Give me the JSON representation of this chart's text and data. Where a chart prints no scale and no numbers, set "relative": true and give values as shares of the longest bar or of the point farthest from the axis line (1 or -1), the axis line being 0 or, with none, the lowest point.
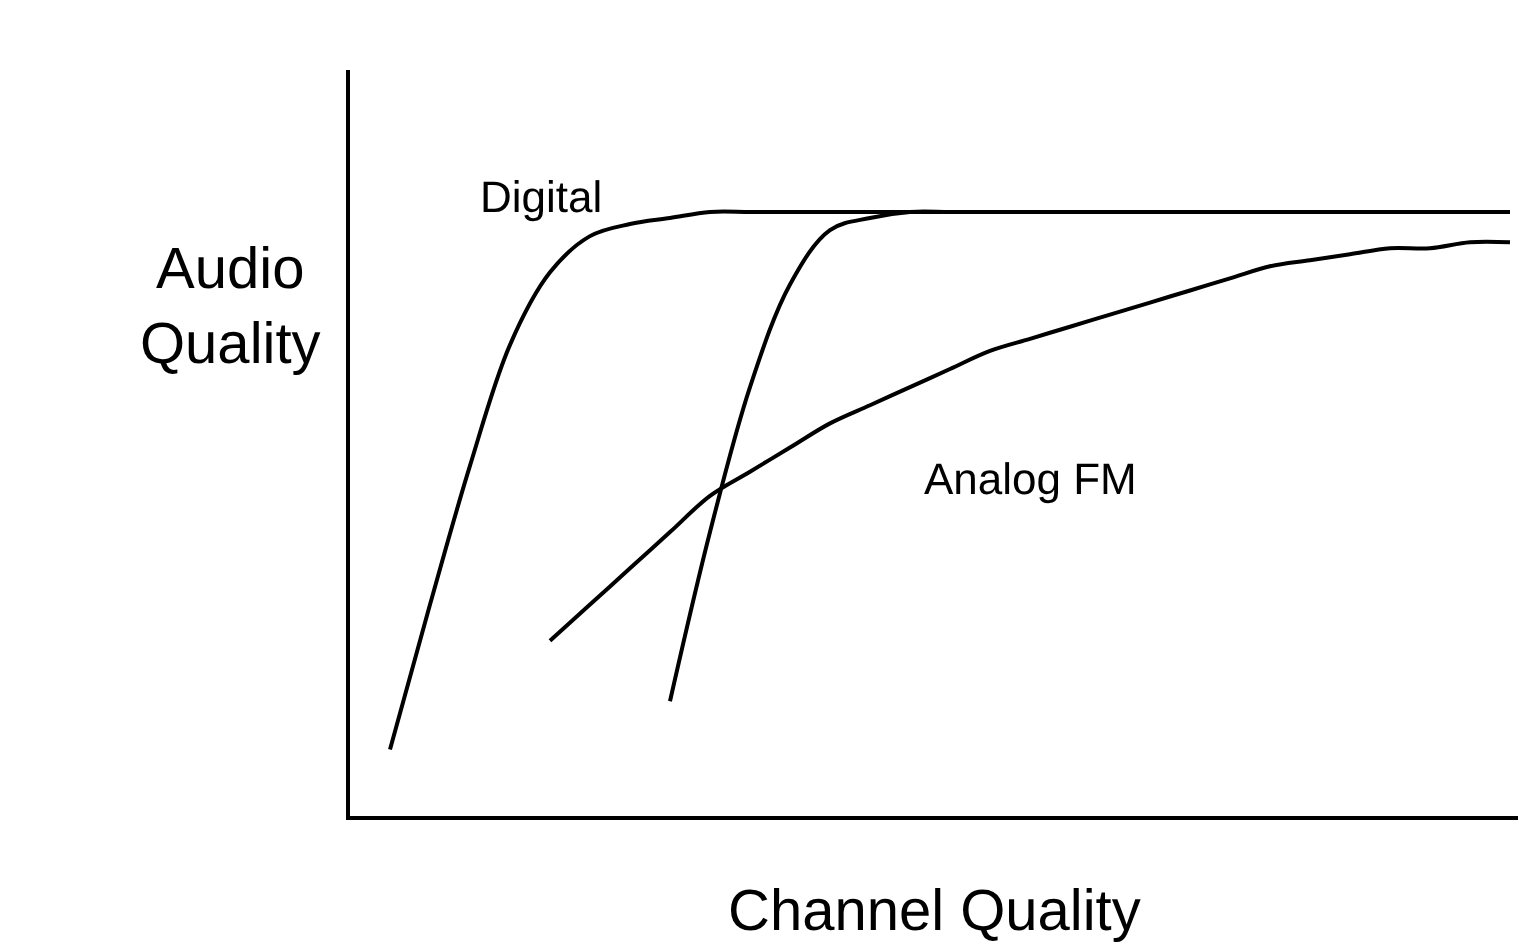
{
  "chart_data": {
    "type": "line",
    "relative": true,
    "xlabel": "Channel Quality",
    "ylabel": "Audio Quality",
    "categories": [
      null,
      null,
      null,
      null,
      null,
      null,
      null,
      null,
      null,
      null,
      null,
      null,
      null,
      null,
      null,
      null,
      null,
      null,
      null,
      null,
      null,
      null,
      null,
      null,
      null,
      null,
      null,
      null,
      null
    ],
    "series": [
      {
        "name": "Digital",
        "color": "#000000",
        "values": [
          0.11,
          0.35,
          0.58,
          0.78,
          0.9,
          0.96,
          0.98,
          0.99,
          1.0,
          1.0,
          1.0,
          1.0,
          1.0,
          1.0,
          1.0,
          1.0,
          1.0,
          1.0,
          1.0,
          1.0,
          1.0,
          1.0,
          1.0,
          1.0,
          1.0,
          1.0,
          1.0,
          1.0,
          1.0
        ]
      },
      {
        "color": "#000000",
        "values": [
          null,
          null,
          null,
          null,
          null,
          null,
          null,
          0.19,
          0.47,
          0.71,
          0.88,
          0.97,
          0.99,
          1.0,
          1.0,
          1.0,
          1.0,
          1.0,
          1.0,
          1.0,
          1.0,
          1.0,
          1.0,
          1.0,
          1.0,
          1.0,
          1.0,
          1.0,
          1.0
        ]
      },
      {
        "name": "Analog FM",
        "color": "#000000",
        "values": [
          null,
          null,
          null,
          null,
          0.29,
          0.35,
          0.41,
          0.47,
          0.53,
          0.57,
          0.61,
          0.65,
          0.68,
          0.71,
          0.74,
          0.77,
          0.79,
          0.81,
          0.83,
          0.85,
          0.87,
          0.89,
          0.91,
          0.92,
          0.93,
          0.94,
          0.94,
          0.95,
          0.95
        ]
      }
    ],
    "legend": false,
    "marker": "none",
    "line_style": "solid"
  }
}
